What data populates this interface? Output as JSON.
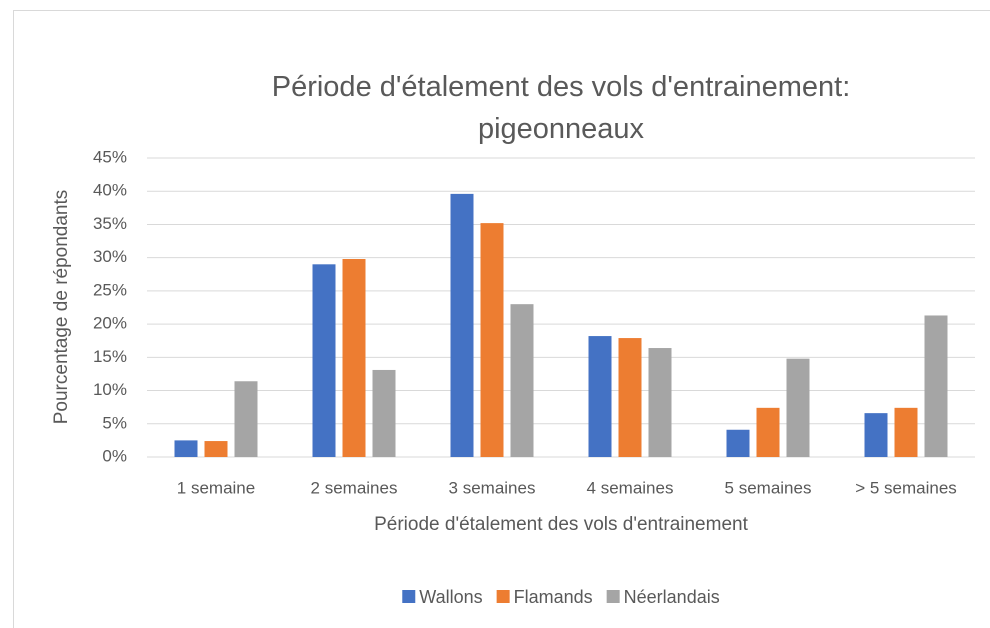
{
  "chart_data": {
    "type": "bar",
    "title": "Période d'étalement des vols d'entrainement: pigeonneaux",
    "x_label": "Période d'étalement des vols d'entrainement",
    "y_label": "Pourcentage de répondants",
    "categories": [
      "1 semaine",
      "2 semaines",
      "3 semaines",
      "4 semaines",
      "5 semaines",
      "> 5 semaines"
    ],
    "series": [
      {
        "name": "Wallons",
        "color": "#4472c4",
        "values": [
          2.5,
          29.0,
          39.6,
          18.2,
          4.1,
          6.6
        ]
      },
      {
        "name": "Flamands",
        "color": "#ed7d31",
        "values": [
          2.4,
          29.8,
          35.2,
          17.9,
          7.4,
          7.4
        ]
      },
      {
        "name": "Néerlandais",
        "color": "#a5a5a5",
        "values": [
          11.4,
          13.1,
          23.0,
          16.4,
          14.8,
          21.3
        ]
      }
    ],
    "ylim": [
      0,
      45
    ],
    "yticks": [
      {
        "value": 0,
        "label": "0%"
      },
      {
        "value": 5,
        "label": "5%"
      },
      {
        "value": 10,
        "label": "10%"
      },
      {
        "value": 15,
        "label": "15%"
      },
      {
        "value": 20,
        "label": "20%"
      },
      {
        "value": 25,
        "label": "25%"
      },
      {
        "value": 30,
        "label": "30%"
      },
      {
        "value": 35,
        "label": "35%"
      },
      {
        "value": 40,
        "label": "40%"
      },
      {
        "value": 45,
        "label": "45%"
      }
    ],
    "grid": true,
    "legend": "bottom"
  }
}
